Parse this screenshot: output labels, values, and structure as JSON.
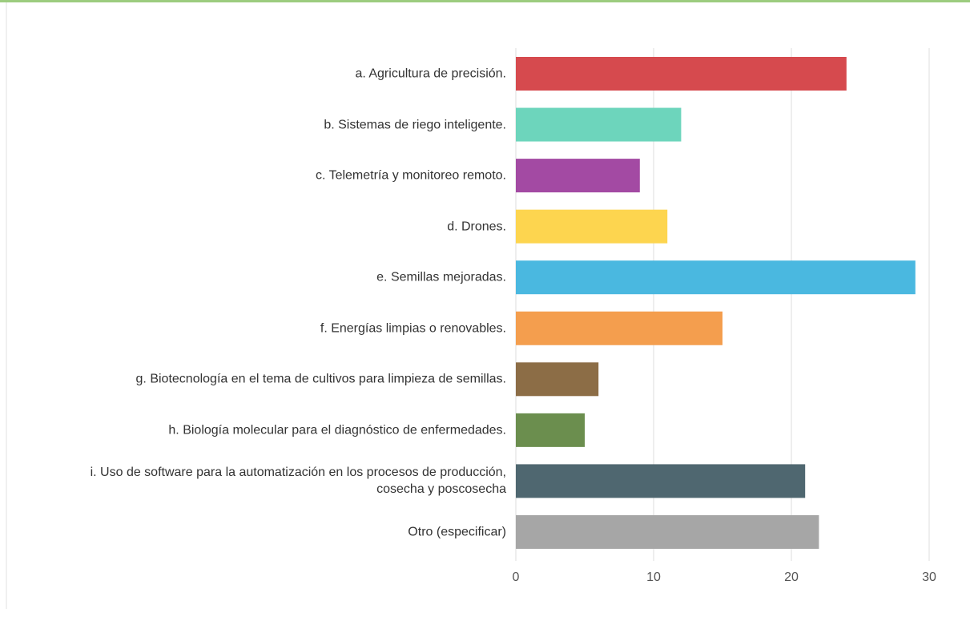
{
  "chart_data": {
    "type": "bar",
    "orientation": "horizontal",
    "categories": [
      "a. Agricultura de precisión.",
      "b. Sistemas de riego inteligente.",
      "c. Telemetría y monitoreo remoto.",
      "d. Drones.",
      "e. Semillas mejoradas.",
      "f. Energías limpias o renovables.",
      "g. Biotecnología en el tema de cultivos para limpieza de semillas.",
      "h. Biología molecular para el diagnóstico de enfermedades.",
      "i. Uso de software para la automatización en los procesos de producción, cosecha y poscosecha",
      "Otro (especificar)"
    ],
    "values": [
      24,
      12,
      9,
      11,
      29,
      15,
      6,
      5,
      21,
      22
    ],
    "colors": [
      "#d64a4e",
      "#6dd5bc",
      "#a34aa3",
      "#fdd54f",
      "#4ab8e0",
      "#f49e4e",
      "#8c6d46",
      "#6b8e4e",
      "#4f6770",
      "#a6a6a6"
    ],
    "xlim": [
      0,
      30
    ],
    "xticks": [
      0,
      10,
      20,
      30
    ],
    "grid": true
  }
}
